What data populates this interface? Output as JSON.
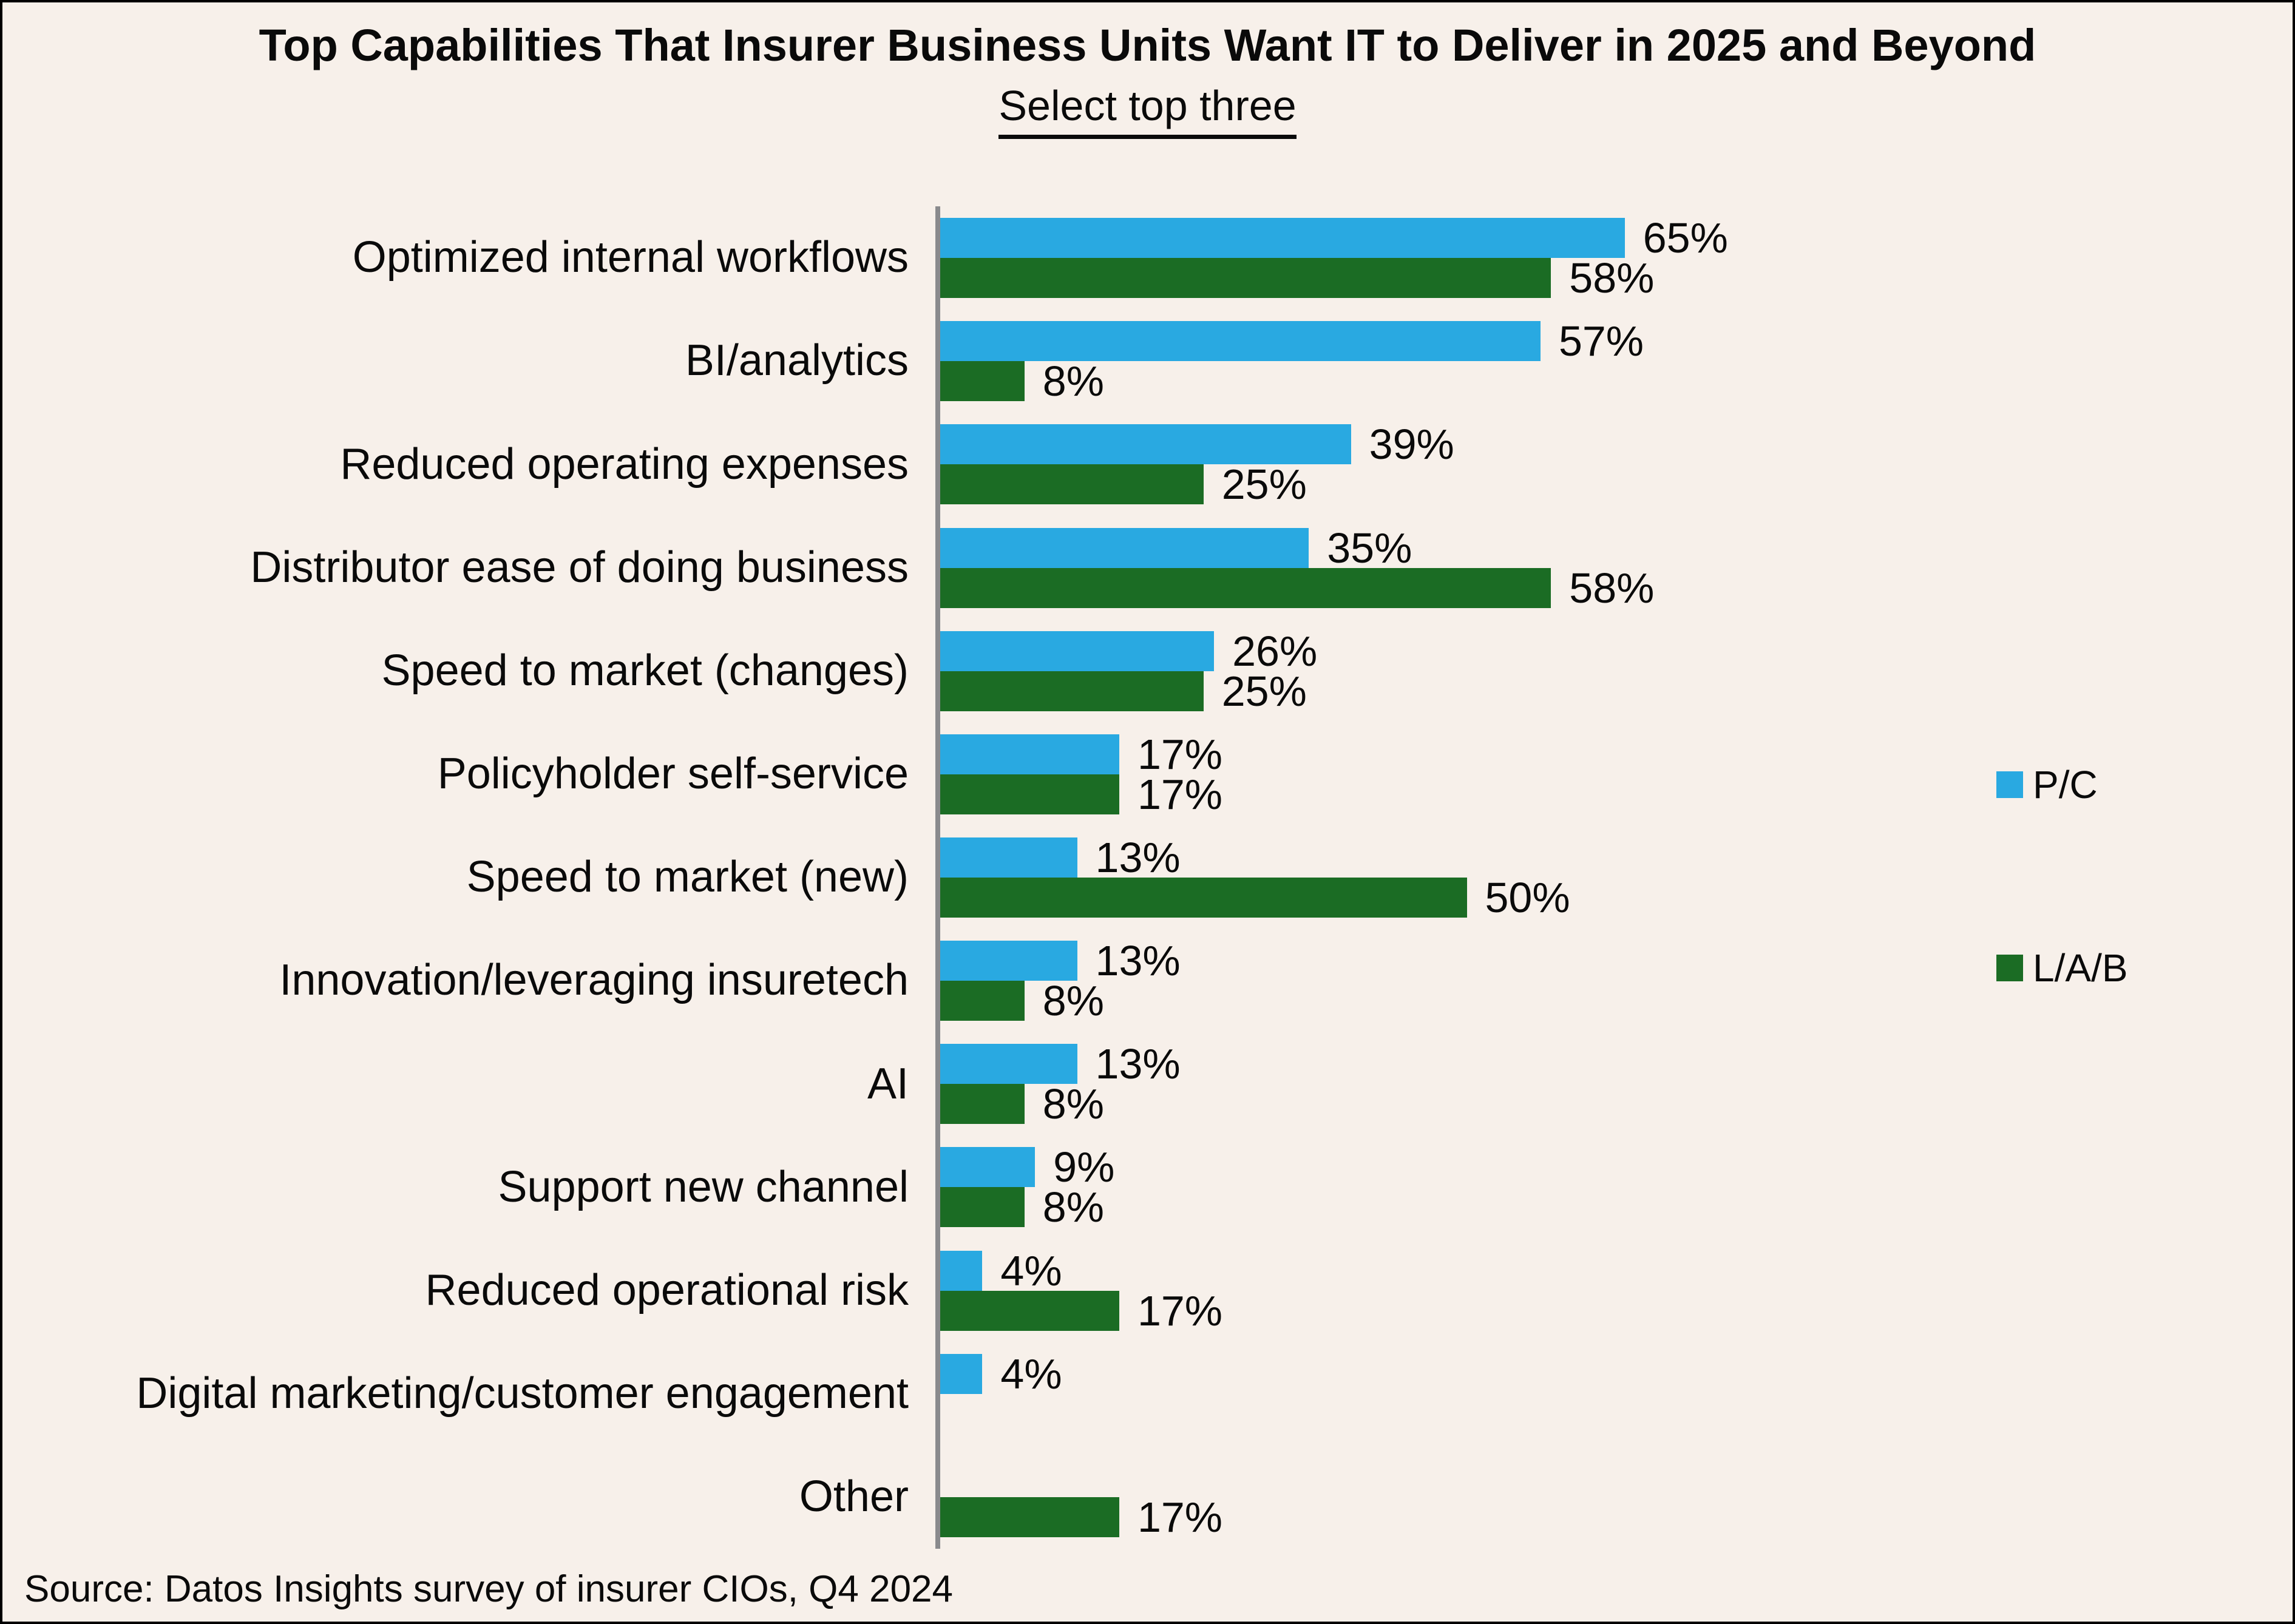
{
  "frame": {
    "background_color": "#F7F0EA",
    "border_color": "#000000"
  },
  "chart_data": {
    "type": "bar",
    "orientation": "horizontal",
    "title": "Top Capabilities That Insurer Business Units Want IT to Deliver in 2025 and Beyond",
    "subtitle": "Select top three",
    "source_note": "Source: Datos Insights survey of insurer CIOs, Q4 2024",
    "unit": "%",
    "xlim": [
      0,
      70
    ],
    "grid": false,
    "axis_color": "#8A8A8D",
    "text_color": "#0A0A0A",
    "legend_position": "right",
    "categories": [
      "Optimized internal workflows",
      "BI/analytics",
      "Reduced operating expenses",
      "Distributor ease of doing business",
      "Speed to market (changes)",
      "Policyholder self-service",
      "Speed to market (new)",
      "Innovation/leveraging insuretech",
      "AI",
      "Support new channel",
      "Reduced operational risk",
      "Digital marketing/customer engagement",
      "Other"
    ],
    "series": [
      {
        "name": "P/C",
        "color": "#29A9E1",
        "values": [
          65,
          57,
          39,
          35,
          26,
          17,
          13,
          13,
          13,
          9,
          4,
          4,
          null
        ]
      },
      {
        "name": "L/A/B",
        "color": "#1B6C24",
        "values": [
          58,
          8,
          25,
          58,
          25,
          17,
          50,
          8,
          8,
          8,
          17,
          null,
          17
        ]
      }
    ]
  }
}
